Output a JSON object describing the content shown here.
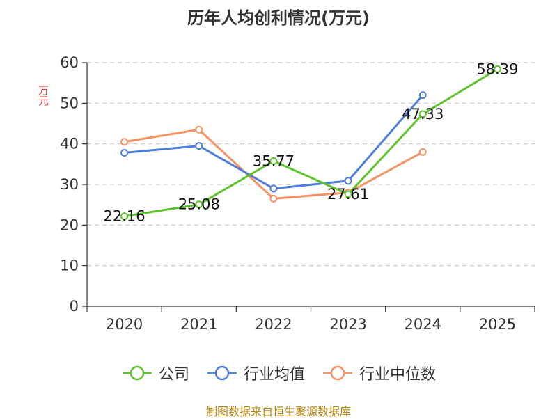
{
  "title": "历年人均创利情况(万元)",
  "y_unit": "万元",
  "source": "制图数据来自恒生聚源数据库",
  "colors": {
    "company": "#5dc32b",
    "industry_avg": "#4e7fdd",
    "industry_median": "#f79262"
  },
  "chart_data": {
    "type": "line",
    "title": "历年人均创利情况(万元)",
    "ylabel": "万元",
    "xlabel": "",
    "categories": [
      "2020",
      "2021",
      "2022",
      "2023",
      "2024",
      "2025"
    ],
    "ylim": [
      0,
      60
    ],
    "yticks": [
      0,
      10,
      20,
      30,
      40,
      50,
      60
    ],
    "grid": true,
    "legend_position": "bottom",
    "series": [
      {
        "name": "公司",
        "color": "#5dc32b",
        "values": [
          22.16,
          25.08,
          35.77,
          27.61,
          47.33,
          58.39
        ],
        "labels": [
          "22.16",
          "25.08",
          "35.77",
          "27.61",
          "47.33",
          "58.39"
        ]
      },
      {
        "name": "行业均值",
        "color": "#4e7fdd",
        "values": [
          37.8,
          39.5,
          29.0,
          30.9,
          52.0,
          null
        ]
      },
      {
        "name": "行业中位数",
        "color": "#f79262",
        "values": [
          40.5,
          43.5,
          26.5,
          28.0,
          38.0,
          null
        ]
      }
    ]
  }
}
